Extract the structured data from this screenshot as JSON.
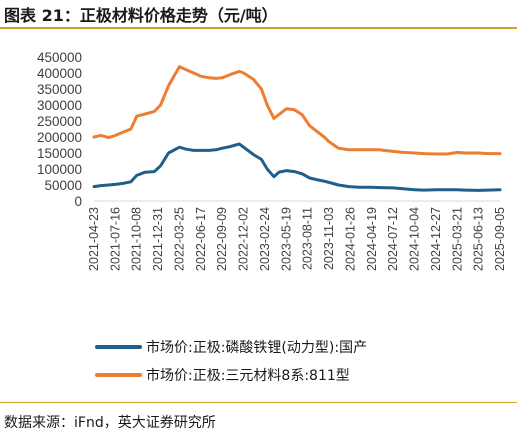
{
  "figure": {
    "title": "图表 21：正极材料价格走势（元/吨）",
    "source": "数据来源：iFnd，英大证券研究所"
  },
  "chart_data": {
    "type": "line",
    "x": [
      "2021-04-23",
      "2021-05-20",
      "2021-06-20",
      "2021-07-16",
      "2021-08-15",
      "2021-09-15",
      "2021-10-08",
      "2021-11-10",
      "2021-12-16",
      "2022-01-10",
      "2022-02-10",
      "2022-03-25",
      "2022-04-20",
      "2022-05-20",
      "2022-06-17",
      "2022-07-20",
      "2022-08-15",
      "2022-09-09",
      "2022-10-10",
      "2022-11-15",
      "2022-12-02",
      "2023-01-10",
      "2023-02-10",
      "2023-03-05",
      "2023-03-31",
      "2023-04-20",
      "2023-05-19",
      "2023-06-20",
      "2023-07-20",
      "2023-08-19",
      "2023-09-20",
      "2023-10-15",
      "2023-11-03",
      "2023-12-10",
      "2024-01-20",
      "2024-03-01",
      "2024-04-19",
      "2024-05-20",
      "2024-07-12",
      "2024-08-20",
      "2024-10-04",
      "2024-11-10",
      "2024-12-27",
      "2025-02-10",
      "2025-03-21",
      "2025-04-20",
      "2025-06-13",
      "2025-07-20",
      "2025-09-05"
    ],
    "x_ticks": [
      "2021-04-23",
      "2021-07-16",
      "2021-10-08",
      "2021-12-31",
      "2022-03-25",
      "2022-06-17",
      "2022-09-09",
      "2022-12-02",
      "2023-02-24",
      "2023-05-19",
      "2023-08-11",
      "2023-11-03",
      "2024-01-26",
      "2024-04-19",
      "2024-07-12",
      "2024-10-04",
      "2024-12-27",
      "2025-03-21",
      "2025-06-13",
      "2025-09-05"
    ],
    "series": [
      {
        "name": "市场价:正极:磷酸铁锂(动力型):国产",
        "color": "#1f5f8b",
        "values": [
          45000,
          48000,
          50000,
          52000,
          55000,
          60000,
          80000,
          90000,
          92000,
          110000,
          150000,
          168000,
          162000,
          158000,
          158000,
          158000,
          160000,
          165000,
          170000,
          178000,
          168000,
          145000,
          130000,
          100000,
          76000,
          90000,
          95000,
          92000,
          85000,
          72000,
          66000,
          62000,
          58000,
          50000,
          45000,
          43000,
          43000,
          42000,
          41000,
          38000,
          35000,
          34000,
          35000,
          35000,
          35000,
          34000,
          33000,
          34000,
          35000
        ]
      },
      {
        "name": "市场价:正极:三元材料8系:811型",
        "color": "#ed7d31",
        "values": [
          200000,
          205000,
          198000,
          205000,
          215000,
          225000,
          265000,
          272000,
          280000,
          300000,
          360000,
          420000,
          410000,
          400000,
          390000,
          385000,
          383000,
          385000,
          395000,
          405000,
          400000,
          380000,
          350000,
          300000,
          258000,
          270000,
          288000,
          285000,
          270000,
          235000,
          215000,
          200000,
          185000,
          165000,
          160000,
          160000,
          160000,
          160000,
          155000,
          152000,
          150000,
          148000,
          147000,
          147000,
          152000,
          150000,
          150000,
          148000,
          148000
        ]
      }
    ],
    "ylim": [
      0,
      450000
    ],
    "y_ticks": [
      0,
      50000,
      100000,
      150000,
      200000,
      250000,
      300000,
      350000,
      400000,
      450000
    ],
    "grid": false,
    "legend_position": "bottom",
    "xlabel": "",
    "ylabel": ""
  }
}
